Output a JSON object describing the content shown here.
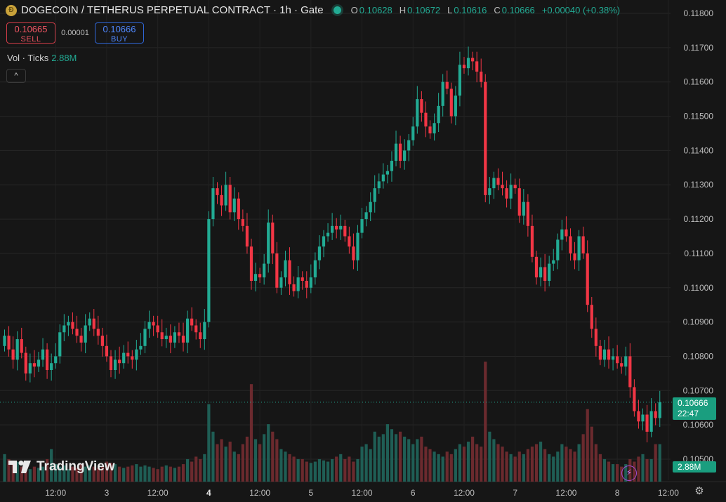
{
  "header": {
    "coin_glyph": "Đ",
    "title": "DOGECOIN / TETHERUS PERPETUAL CONTRACT · 1h · Gate",
    "ohlc": [
      {
        "label": "O",
        "value": "0.10628"
      },
      {
        "label": "H",
        "value": "0.10672"
      },
      {
        "label": "L",
        "value": "0.10616"
      },
      {
        "label": "C",
        "value": "0.10666"
      }
    ],
    "change": "+0.00040 (+0.38%)"
  },
  "trade": {
    "sell_price": "0.10665",
    "sell_label": "SELL",
    "spread": "0.00001",
    "buy_price": "0.10666",
    "buy_label": "BUY"
  },
  "volume_legend": {
    "label": "Vol · Ticks",
    "value": "2.88M"
  },
  "collapse_glyph": "^",
  "logo_text": "TradingView",
  "settings_glyph": "⚙",
  "bolt_glyph": "⚡",
  "last_price_tag": {
    "price": "0.10666",
    "countdown": "22:47"
  },
  "volume_tag": "2.88M",
  "colors": {
    "up": "#22ab94",
    "down": "#f23645",
    "vol_up": "#1f5e55",
    "vol_down": "#6b2a2e",
    "background": "#161616"
  },
  "chart_data": {
    "type": "candlestick",
    "series": [
      {
        "name": "Vol · Ticks",
        "type": "bar"
      }
    ],
    "y_axis": {
      "ylim": [
        0.1045,
        0.118
      ],
      "ticks": [
        "0.11800",
        "0.11700",
        "0.11600",
        "0.11500",
        "0.11400",
        "0.11300",
        "0.11200",
        "0.11100",
        "0.11000",
        "0.10900",
        "0.10800",
        "0.10700",
        "0.10600",
        "0.10500"
      ]
    },
    "x_axis": {
      "ticks": [
        {
          "label": "12:00",
          "i": 12
        },
        {
          "label": "3",
          "i": 24
        },
        {
          "label": "12:00",
          "i": 36
        },
        {
          "label": "4",
          "i": 48,
          "bold": true
        },
        {
          "label": "12:00",
          "i": 60
        },
        {
          "label": "5",
          "i": 72
        },
        {
          "label": "12:00",
          "i": 84
        },
        {
          "label": "6",
          "i": 96
        },
        {
          "label": "12:00",
          "i": 108
        },
        {
          "label": "7",
          "i": 120
        },
        {
          "label": "12:00",
          "i": 132
        },
        {
          "label": "8",
          "i": 144
        },
        {
          "label": "12:00",
          "i": 156
        }
      ]
    },
    "last_price": 0.10666,
    "closes": [
      0.1086,
      0.1082,
      0.1079,
      0.1085,
      0.1081,
      0.1075,
      0.1078,
      0.1077,
      0.1079,
      0.1082,
      0.1076,
      0.1078,
      0.108,
      0.1087,
      0.1089,
      0.109,
      0.1088,
      0.1086,
      0.1084,
      0.1089,
      0.1091,
      0.1088,
      0.1086,
      0.1083,
      0.108,
      0.1076,
      0.1079,
      0.1078,
      0.1081,
      0.108,
      0.1079,
      0.1082,
      0.1083,
      0.1088,
      0.109,
      0.1089,
      0.1087,
      0.1085,
      0.1086,
      0.1084,
      0.1087,
      0.1086,
      0.1084,
      0.1091,
      0.1089,
      0.1087,
      0.1085,
      0.109,
      0.112,
      0.1129,
      0.1127,
      0.1124,
      0.113,
      0.1122,
      0.1126,
      0.112,
      0.1118,
      0.1112,
      0.1102,
      0.1104,
      0.1103,
      0.1107,
      0.1119,
      0.111,
      0.11,
      0.1103,
      0.1108,
      0.1101,
      0.1099,
      0.1103,
      0.1102,
      0.11,
      0.1103,
      0.1108,
      0.1112,
      0.1115,
      0.1116,
      0.1118,
      0.1117,
      0.1118,
      0.1115,
      0.1112,
      0.1108,
      0.1116,
      0.112,
      0.1122,
      0.1125,
      0.1129,
      0.1131,
      0.1133,
      0.1134,
      0.1137,
      0.1142,
      0.1137,
      0.114,
      0.1143,
      0.1147,
      0.1155,
      0.1151,
      0.1147,
      0.1145,
      0.1148,
      0.1153,
      0.116,
      0.1158,
      0.115,
      0.1156,
      0.1165,
      0.1164,
      0.1167,
      0.1166,
      0.1163,
      0.116,
      0.1127,
      0.1129,
      0.1132,
      0.113,
      0.1129,
      0.1126,
      0.113,
      0.1129,
      0.1121,
      0.1125,
      0.1118,
      0.1109,
      0.1103,
      0.1106,
      0.1102,
      0.1107,
      0.1108,
      0.1114,
      0.1117,
      0.1115,
      0.111,
      0.1108,
      0.1115,
      0.111,
      0.1095,
      0.1088,
      0.1083,
      0.1079,
      0.1082,
      0.1079,
      0.108,
      0.1078,
      0.1077,
      0.108,
      0.1071,
      0.1064,
      0.1061,
      0.1063,
      0.1058,
      0.1064,
      0.1062,
      0.10666
    ],
    "volumes": [
      22,
      18,
      14,
      16,
      12,
      14,
      10,
      12,
      11,
      12,
      18,
      26,
      14,
      12,
      13,
      10,
      12,
      11,
      14,
      12,
      13,
      12,
      11,
      12,
      16,
      15,
      14,
      12,
      11,
      12,
      13,
      14,
      12,
      13,
      12,
      11,
      10,
      12,
      13,
      12,
      11,
      12,
      14,
      18,
      16,
      20,
      18,
      22,
      62,
      40,
      30,
      34,
      28,
      32,
      24,
      22,
      30,
      36,
      78,
      34,
      30,
      38,
      46,
      40,
      34,
      26,
      24,
      22,
      20,
      18,
      18,
      16,
      15,
      16,
      18,
      17,
      16,
      18,
      20,
      22,
      18,
      20,
      16,
      18,
      28,
      30,
      26,
      40,
      36,
      38,
      46,
      42,
      38,
      40,
      36,
      34,
      30,
      34,
      36,
      28,
      26,
      24,
      22,
      20,
      24,
      22,
      26,
      30,
      28,
      32,
      36,
      30,
      28,
      96,
      40,
      34,
      30,
      28,
      24,
      22,
      20,
      24,
      22,
      26,
      28,
      30,
      32,
      26,
      22,
      20,
      24,
      30,
      28,
      26,
      24,
      30,
      38,
      58,
      44,
      30,
      22,
      18,
      16,
      14,
      14,
      12,
      14,
      18,
      16,
      20,
      22,
      18,
      18,
      30,
      30
    ]
  }
}
